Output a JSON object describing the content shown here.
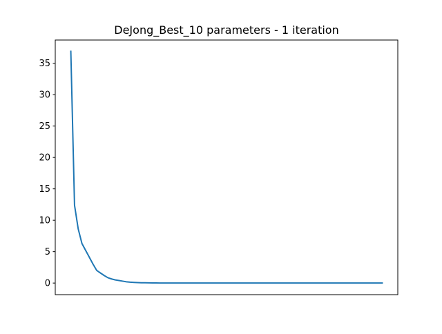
{
  "chart_data": {
    "type": "line",
    "title": "DeJong_Best_10 parameters - 1 iteration",
    "xlabel": "",
    "ylabel": "",
    "x_ticks_shown": false,
    "ylim": [
      -1.85,
      38.7
    ],
    "xlim": [
      -4.2,
      88.2
    ],
    "yticks": [
      0,
      5,
      10,
      15,
      20,
      25,
      30,
      35
    ],
    "ytick_labels": [
      "0",
      "5",
      "10",
      "15",
      "20",
      "25",
      "30",
      "35"
    ],
    "grid": false,
    "series": [
      {
        "color": "#1f77b4",
        "x": [
          0,
          1,
          2,
          3,
          4,
          5,
          6,
          7,
          8,
          9,
          10,
          11,
          12,
          13,
          14,
          15,
          16,
          17,
          18,
          19,
          20,
          21,
          22,
          23,
          24,
          25,
          30,
          35,
          40,
          45,
          50,
          55,
          60,
          65,
          70,
          75,
          80,
          84
        ],
        "y": [
          36.9,
          12.4,
          8.6,
          6.3,
          5.2,
          4.1,
          3.0,
          2.0,
          1.6,
          1.2,
          0.85,
          0.65,
          0.5,
          0.4,
          0.3,
          0.2,
          0.14,
          0.1,
          0.07,
          0.05,
          0.04,
          0.03,
          0.02,
          0.015,
          0.01,
          0.008,
          0.005,
          0.003,
          0.002,
          0.002,
          0.001,
          0.001,
          0.001,
          0.001,
          0.001,
          0.001,
          0.001,
          0.001
        ]
      }
    ]
  }
}
